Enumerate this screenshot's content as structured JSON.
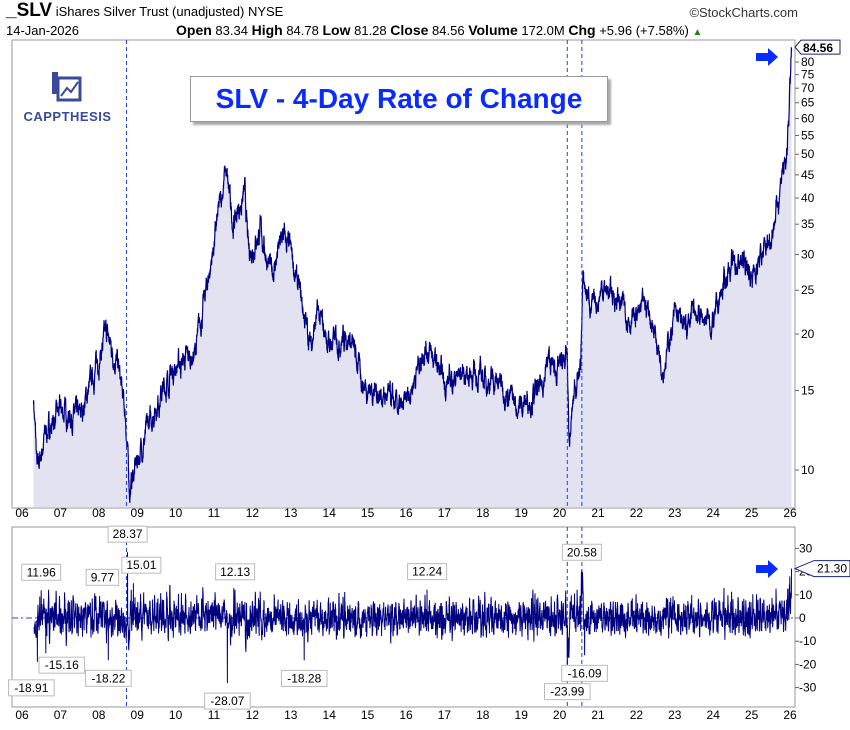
{
  "header": {
    "symbol": "_SLV",
    "name": "iShares Silver Trust (unadjusted)",
    "exchange": "NYSE",
    "copyright": "©StockCharts.com",
    "date": "14-Jan-2026",
    "open_label": "Open",
    "open": "83.34",
    "high_label": "High",
    "high": "84.78",
    "low_label": "Low",
    "low": "81.28",
    "close_label": "Close",
    "close": "84.56",
    "volume_label": "Volume",
    "volume": "172.0M",
    "chg_label": "Chg",
    "chg": "+5.96 (+7.58%)",
    "chg_icon": "triangle-up-icon"
  },
  "logo": {
    "text": "CAPPTHESIS"
  },
  "title": "SLV - 4-Day Rate of Change",
  "colors": {
    "line": "#000080",
    "fill": "#e2e2f0",
    "accent": "#0a2bff",
    "dashed": "#1a3cff",
    "up": "#1a8a1a"
  },
  "chart_data": [
    {
      "type": "area",
      "scale": "log",
      "series": [
        {
          "values_by_year": [
            [
              2006.3,
              14.5
            ],
            [
              2006.4,
              9.8
            ],
            [
              2006.6,
              12
            ],
            [
              2007.0,
              13.5
            ],
            [
              2007.5,
              13
            ],
            [
              2008.2,
              20
            ],
            [
              2008.5,
              17
            ],
            [
              2008.7,
              13
            ],
            [
              2008.8,
              9
            ],
            [
              2009.0,
              10.5
            ],
            [
              2009.5,
              14
            ],
            [
              2010.0,
              17
            ],
            [
              2010.5,
              18
            ],
            [
              2010.9,
              28
            ],
            [
              2011.3,
              46
            ],
            [
              2011.5,
              35
            ],
            [
              2011.8,
              41
            ],
            [
              2011.9,
              30
            ],
            [
              2012.2,
              34
            ],
            [
              2012.5,
              27
            ],
            [
              2012.8,
              33
            ],
            [
              2013.0,
              30
            ],
            [
              2013.3,
              23
            ],
            [
              2013.5,
              19
            ],
            [
              2013.7,
              22
            ],
            [
              2014.0,
              19
            ],
            [
              2014.5,
              20
            ],
            [
              2014.9,
              15.5
            ],
            [
              2015.5,
              14.5
            ],
            [
              2015.9,
              13.3
            ],
            [
              2016.5,
              19
            ],
            [
              2016.8,
              17
            ],
            [
              2017.0,
              15.5
            ],
            [
              2017.5,
              16.5
            ],
            [
              2018.0,
              16
            ],
            [
              2018.5,
              15.5
            ],
            [
              2018.9,
              13.8
            ],
            [
              2019.5,
              15
            ],
            [
              2019.7,
              17.5
            ],
            [
              2019.9,
              16.5
            ],
            [
              2020.2,
              17.5
            ],
            [
              2020.25,
              11.3
            ],
            [
              2020.4,
              15.5
            ],
            [
              2020.55,
              17
            ],
            [
              2020.6,
              26
            ],
            [
              2020.9,
              22.5
            ],
            [
              2021.1,
              25.5
            ],
            [
              2021.5,
              24
            ],
            [
              2021.9,
              21.5
            ],
            [
              2022.3,
              23
            ],
            [
              2022.7,
              17
            ],
            [
              2023.0,
              22
            ],
            [
              2023.3,
              20.5
            ],
            [
              2023.5,
              22.5
            ],
            [
              2024.0,
              21
            ],
            [
              2024.4,
              28
            ],
            [
              2024.8,
              29
            ],
            [
              2025.0,
              27
            ],
            [
              2025.3,
              30
            ],
            [
              2025.5,
              33
            ],
            [
              2025.7,
              40
            ],
            [
              2025.8,
              47
            ],
            [
              2025.9,
              46
            ],
            [
              2026.0,
              70
            ],
            [
              2026.04,
              84.56
            ]
          ]
        }
      ],
      "yticks": [
        10,
        15,
        20,
        25,
        30,
        35,
        40,
        45,
        50,
        55,
        60,
        65,
        70,
        75,
        80
      ],
      "last_value_label": "84.56",
      "xticks": [
        "06",
        "07",
        "08",
        "09",
        "10",
        "11",
        "12",
        "13",
        "14",
        "15",
        "16",
        "17",
        "18",
        "19",
        "20",
        "21",
        "22",
        "23",
        "24",
        "25",
        "26"
      ],
      "vlines": [
        2008.72,
        2020.2,
        2020.58
      ],
      "grid": false
    },
    {
      "type": "line",
      "name": "4-Day Rate of Change",
      "yticks": [
        30,
        20,
        10,
        0,
        -10,
        -20,
        -30
      ],
      "ylim": [
        -38,
        38
      ],
      "last_value_label": "21.30",
      "annotations": [
        {
          "x": 2006.5,
          "y": 11.96,
          "label": "11.96"
        },
        {
          "x": 2006.4,
          "y": -18.91,
          "label": "-18.91"
        },
        {
          "x": 2006.62,
          "y": -15.16,
          "label": "-15.16"
        },
        {
          "x": 2008.25,
          "y": 9.77,
          "label": "9.77"
        },
        {
          "x": 2008.25,
          "y": -18.22,
          "label": "-18.22"
        },
        {
          "x": 2008.75,
          "y": 28.37,
          "label": "28.37"
        },
        {
          "x": 2008.9,
          "y": 15.01,
          "label": "15.01"
        },
        {
          "x": 2011.55,
          "y": 12.13,
          "label": "12.13"
        },
        {
          "x": 2011.35,
          "y": -28.07,
          "label": "-28.07"
        },
        {
          "x": 2013.35,
          "y": -18.28,
          "label": "-18.28"
        },
        {
          "x": 2016.55,
          "y": 12.24,
          "label": "12.24"
        },
        {
          "x": 2020.58,
          "y": 20.58,
          "label": "20.58"
        },
        {
          "x": 2020.2,
          "y": -23.99,
          "label": "-23.99"
        },
        {
          "x": 2020.65,
          "y": -16.09,
          "label": "-16.09"
        }
      ],
      "last": {
        "x": 2026.04,
        "y": 21.3
      }
    }
  ]
}
